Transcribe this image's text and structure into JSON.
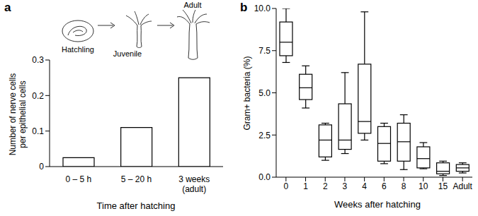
{
  "chart_data": [
    {
      "type": "bar",
      "title": "a",
      "annotations": [
        "Hatchling",
        "Juvenile",
        "Adult"
      ],
      "categories": [
        "0 – 5 h",
        "5 – 20 h",
        "3 weeks (adult)"
      ],
      "values": [
        0.025,
        0.11,
        0.25
      ],
      "color": "#ffffff",
      "x_label": "Time after hatching",
      "y_label": "Number of nerve cells per epithelial cells",
      "ylim": [
        0,
        0.3
      ],
      "yticks": [
        0,
        0.1,
        0.2,
        0.3
      ]
    },
    {
      "type": "box",
      "title": "b",
      "categories": [
        "0",
        "1",
        "2",
        "3",
        "4",
        "6",
        "8",
        "10",
        "15",
        "Adult"
      ],
      "min": [
        6.8,
        4.1,
        1.0,
        1.4,
        2.2,
        0.8,
        0.45,
        0.5,
        0.1,
        0.25
      ],
      "q1": [
        7.2,
        4.6,
        1.2,
        1.65,
        2.6,
        0.95,
        0.95,
        0.55,
        0.2,
        0.35
      ],
      "median": [
        8.0,
        5.3,
        2.2,
        2.2,
        3.3,
        2.0,
        2.1,
        1.1,
        0.35,
        0.55
      ],
      "q3": [
        9.2,
        6.1,
        3.1,
        4.35,
        6.7,
        3.0,
        3.2,
        1.8,
        0.85,
        0.75
      ],
      "max": [
        10.0,
        6.6,
        3.2,
        6.2,
        9.8,
        3.2,
        3.7,
        2.05,
        0.95,
        0.85
      ],
      "color": "#ffffff",
      "x_label": "Weeks after hatching",
      "y_label": "Gram+ bacteria (%)",
      "ylim": [
        0,
        10
      ],
      "yticks": [
        {
          "value": 0,
          "label": "0.0"
        },
        2.5,
        {
          "value": 5,
          "label": "5.0"
        },
        7.5,
        {
          "value": 10,
          "label": "10.0"
        }
      ]
    }
  ]
}
